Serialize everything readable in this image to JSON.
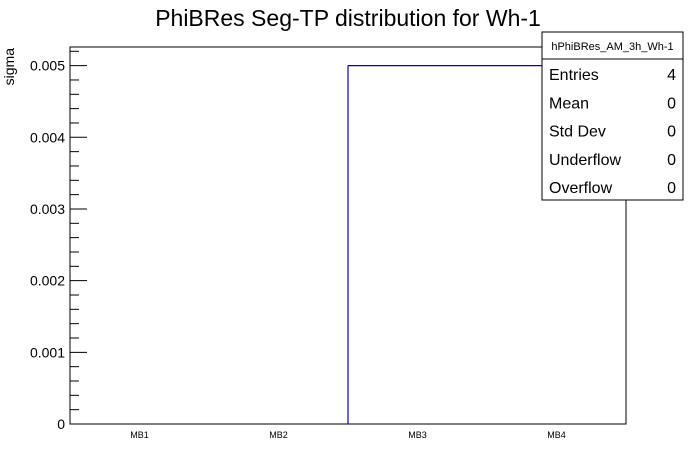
{
  "chart_data": {
    "type": "bar",
    "title": "PhiBRes Seg-TP distribution for Wh-1",
    "xlabel": "",
    "ylabel": "sigma",
    "categories": [
      "MB1",
      "MB2",
      "MB3",
      "MB4"
    ],
    "values": [
      0,
      0,
      0.005,
      0.005
    ],
    "ylim": [
      0,
      0.00526
    ],
    "yticks": [
      "0",
      "0.001",
      "0.002",
      "0.003",
      "0.004",
      "0.005"
    ],
    "grid": false,
    "line_color": "#0000cc",
    "stats_box": {
      "name": "hPhiBRes_AM_3h_Wh-1",
      "position": "top-right",
      "rows": [
        {
          "label": "Entries",
          "value": "4"
        },
        {
          "label": "Mean",
          "value": "0"
        },
        {
          "label": "Std Dev",
          "value": "0"
        },
        {
          "label": "Underflow",
          "value": "0"
        },
        {
          "label": "Overflow",
          "value": "0"
        }
      ]
    }
  }
}
